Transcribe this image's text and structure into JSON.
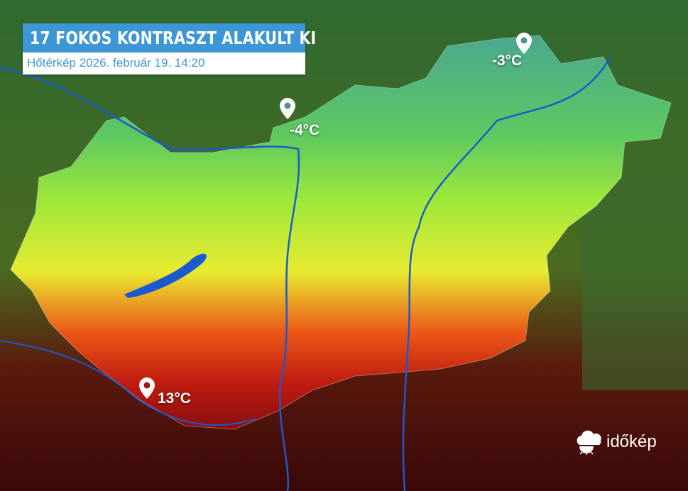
{
  "header": {
    "title": "17 FOKOS KONTRASZT ALAKULT KI",
    "subtitle": "Hőtérkép 2026. február 19. 14:20"
  },
  "markers": [
    {
      "label": "-4°C",
      "icon": "map-pin-icon"
    },
    {
      "label": "-3°C",
      "icon": "map-pin-icon"
    },
    {
      "label": "13°C",
      "icon": "map-pin-icon"
    }
  ],
  "legend_colors": {
    "cold": "#3aa0a0",
    "cool": "#7ee23a",
    "mild": "#e8ea30",
    "warm": "#e23a14",
    "hot": "#8a0e0e"
  },
  "brand": {
    "logo_text": "időkép",
    "title_color": "#3d97d6"
  }
}
